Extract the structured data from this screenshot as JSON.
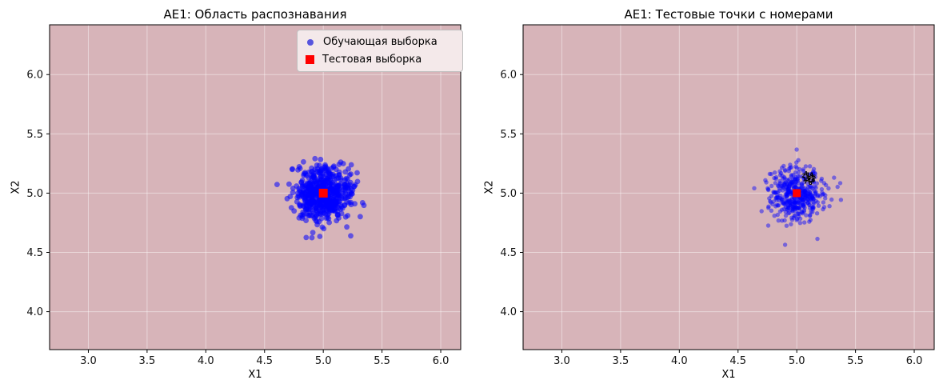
{
  "figure": {
    "background": "#ffffff"
  },
  "chart_data": [
    {
      "type": "scatter",
      "title": "AE1: Область распознавания",
      "xlabel": "X1",
      "ylabel": "X2",
      "xlim": [
        2.67,
        6.17
      ],
      "ylim": [
        3.68,
        6.42
      ],
      "xticks": [
        3.0,
        3.5,
        4.0,
        4.5,
        5.0,
        5.5,
        6.0
      ],
      "yticks": [
        4.0,
        4.5,
        5.0,
        5.5,
        6.0
      ],
      "grid": true,
      "grid_color": "#ffffff",
      "region_color": "#d7b4b9",
      "series": [
        {
          "name": "Обучающая выборка",
          "kind": "gaussian_blob",
          "center": [
            5.0,
            5.0
          ],
          "std": 0.12,
          "n": 600,
          "seed": 42,
          "color": "#0000ff",
          "alpha": 0.55,
          "radius": 3.4,
          "marker": "circle"
        },
        {
          "name": "Тестовая выборка",
          "kind": "point",
          "center": [
            5.0,
            5.0
          ],
          "color": "#ff0000",
          "marker": "square",
          "size": 11
        }
      ],
      "legend": {
        "visible": true,
        "entries": [
          {
            "label": "Обучающая выборка",
            "marker": "circle",
            "color": "#2323d9"
          },
          {
            "label": "Тестовая выборка",
            "marker": "square",
            "color": "#ff0000"
          }
        ]
      },
      "annotations": []
    },
    {
      "type": "scatter",
      "title": "AE1: Тестовые точки с номерами",
      "xlabel": "X1",
      "ylabel": "X2",
      "xlim": [
        2.67,
        6.17
      ],
      "ylim": [
        3.68,
        6.42
      ],
      "xticks": [
        3.0,
        3.5,
        4.0,
        4.5,
        5.0,
        5.5,
        6.0
      ],
      "yticks": [
        4.0,
        4.5,
        5.0,
        5.5,
        6.0
      ],
      "grid": true,
      "grid_color": "#ffffff",
      "region_color": "#d7b4b9",
      "series": [
        {
          "name": "Обучающая выборка",
          "kind": "gaussian_blob",
          "center": [
            5.0,
            5.0
          ],
          "std": 0.115,
          "n": 450,
          "seed": 7,
          "color": "#0000ff",
          "alpha": 0.45,
          "radius": 2.7,
          "marker": "circle"
        },
        {
          "name": "Тестовая выборка",
          "kind": "point",
          "center": [
            5.0,
            5.0
          ],
          "color": "#ff0000",
          "marker": "square",
          "size": 10
        }
      ],
      "legend": {
        "visible": false,
        "entries": []
      },
      "annotation_color": "#000000",
      "annotations": [
        {
          "t": "1",
          "x": 5.07,
          "y": 5.12
        },
        {
          "t": "2",
          "x": 5.04,
          "y": 5.13
        },
        {
          "t": "3",
          "x": 5.12,
          "y": 5.09
        },
        {
          "t": "4",
          "x": 5.06,
          "y": 5.15
        },
        {
          "t": "5",
          "x": 5.09,
          "y": 5.11
        },
        {
          "t": "6",
          "x": 5.13,
          "y": 5.12
        },
        {
          "t": "7",
          "x": 5.06,
          "y": 5.08
        },
        {
          "t": "8",
          "x": 5.1,
          "y": 5.07
        },
        {
          "t": "9",
          "x": 5.11,
          "y": 5.13
        },
        {
          "t": "10",
          "x": 5.09,
          "y": 5.09
        },
        {
          "t": "11",
          "x": 5.08,
          "y": 5.14
        },
        {
          "t": "12",
          "x": 5.05,
          "y": 5.1
        }
      ]
    }
  ]
}
